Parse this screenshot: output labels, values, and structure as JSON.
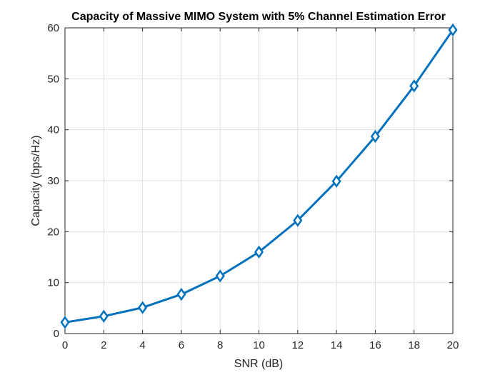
{
  "chart_data": {
    "type": "line",
    "title": "Capacity of Massive MIMO System with 5% Channel Estimation Error",
    "xlabel": "SNR (dB)",
    "ylabel": "Capacity (bps/Hz)",
    "xlim": [
      0,
      20
    ],
    "ylim": [
      0,
      60
    ],
    "xticks": [
      0,
      2,
      4,
      6,
      8,
      10,
      12,
      14,
      16,
      18,
      20
    ],
    "yticks": [
      0,
      10,
      20,
      30,
      40,
      50,
      60
    ],
    "grid": true,
    "legend": "none",
    "series": [
      {
        "color": "#0072BD",
        "marker": "diamond",
        "x": [
          0,
          2,
          4,
          6,
          8,
          10,
          12,
          14,
          16,
          18,
          20
        ],
        "y": [
          2.2,
          3.4,
          5.1,
          7.7,
          11.3,
          16.0,
          22.2,
          29.9,
          38.7,
          48.6,
          59.6
        ]
      }
    ]
  }
}
